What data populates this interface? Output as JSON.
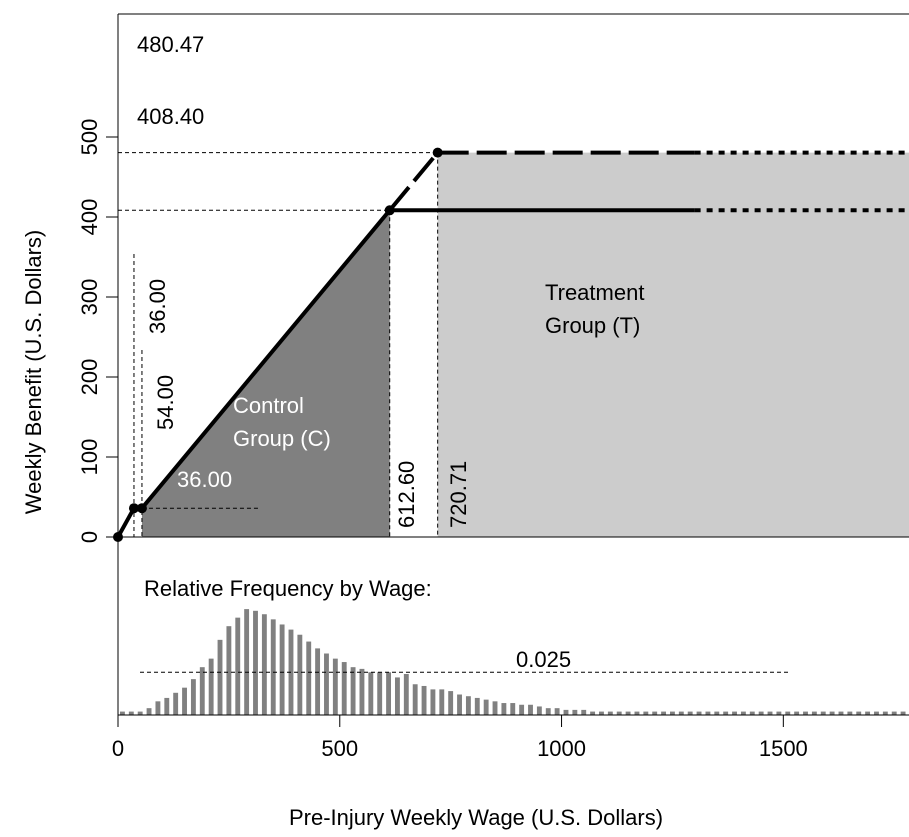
{
  "chart_data": {
    "type": "line",
    "xlabel": "Pre-Injury Weekly Wage (U.S. Dollars)",
    "ylabel": "Weekly Benefit (U.S. Dollars)",
    "xlim": [
      0,
      1800
    ],
    "ylim": [
      0,
      520
    ],
    "x_ticks": [
      0,
      500,
      1000,
      1500
    ],
    "y_ticks": [
      0,
      100,
      200,
      300,
      400,
      500
    ],
    "series": [
      {
        "style": "solid",
        "points": [
          [
            0,
            0
          ],
          [
            36,
            36
          ],
          [
            54,
            36
          ],
          [
            612.6,
            408.4
          ],
          [
            1300,
            408.4
          ]
        ],
        "dotted_extension": [
          [
            1300,
            408.4
          ],
          [
            1800,
            408.4
          ]
        ]
      },
      {
        "style": "dashed",
        "points": [
          [
            612.6,
            408.4
          ],
          [
            720.71,
            480.47
          ],
          [
            1300,
            480.47
          ]
        ],
        "dotted_extension": [
          [
            1300,
            480.47
          ],
          [
            1800,
            480.47
          ]
        ]
      }
    ],
    "marked_points": [
      [
        0,
        0
      ],
      [
        36,
        36
      ],
      [
        54,
        36
      ],
      [
        612.6,
        408.4
      ],
      [
        720.71,
        480.47
      ]
    ],
    "regions": [
      {
        "label_lines": [
          "Control",
          "Group (C)"
        ],
        "x_range": [
          54,
          612.6
        ],
        "fill": "#808080"
      },
      {
        "label_lines": [
          "Treatment",
          "Group (T)"
        ],
        "x_range": [
          720.71,
          1800
        ],
        "fill": "#cccccc"
      }
    ],
    "annotations": {
      "y_max_label": "480.47",
      "y_kink_label": "408.40",
      "x_kink_label": "612.60",
      "x_max_label": "720.71",
      "x_min1_label": "36.00",
      "x_min2_label": "54.00",
      "y_min_label": "36.00"
    },
    "frequency_panel": {
      "title": "Relative Frequency by Wage:",
      "reference_value": 0.025,
      "reference_label": "0.025",
      "bin_width": 20,
      "bin_centers": [
        10,
        30,
        50,
        70,
        90,
        110,
        130,
        150,
        170,
        190,
        210,
        230,
        250,
        270,
        290,
        310,
        330,
        350,
        370,
        390,
        410,
        430,
        450,
        470,
        490,
        510,
        530,
        550,
        570,
        590,
        610,
        630,
        650,
        670,
        690,
        710,
        730,
        750,
        770,
        790,
        810,
        830,
        850,
        870,
        890,
        910,
        930,
        950,
        970,
        990,
        1010,
        1030,
        1050,
        1070,
        1090,
        1110,
        1130,
        1150,
        1170,
        1190,
        1210,
        1230,
        1250,
        1270,
        1290,
        1310,
        1330,
        1350,
        1370,
        1390,
        1410,
        1430,
        1450,
        1470,
        1490,
        1510,
        1530,
        1550,
        1570,
        1590,
        1610,
        1630,
        1650,
        1670,
        1690,
        1710,
        1730,
        1750,
        1770,
        1790
      ],
      "frequencies": [
        0.002,
        0.002,
        0.002,
        0.004,
        0.008,
        0.01,
        0.013,
        0.016,
        0.021,
        0.028,
        0.033,
        0.044,
        0.052,
        0.057,
        0.062,
        0.061,
        0.059,
        0.056,
        0.053,
        0.05,
        0.047,
        0.043,
        0.039,
        0.036,
        0.033,
        0.031,
        0.028,
        0.027,
        0.025,
        0.025,
        0.025,
        0.022,
        0.024,
        0.018,
        0.017,
        0.015,
        0.015,
        0.014,
        0.012,
        0.011,
        0.01,
        0.009,
        0.008,
        0.007,
        0.007,
        0.006,
        0.006,
        0.005,
        0.004,
        0.004,
        0.003,
        0.003,
        0.003,
        0.002,
        0.002,
        0.002,
        0.002,
        0.002,
        0.002,
        0.002,
        0.002,
        0.002,
        0.002,
        0.002,
        0.002,
        0.002,
        0.002,
        0.002,
        0.002,
        0.002,
        0.002,
        0.002,
        0.002,
        0.002,
        0.002,
        0.002,
        0.002,
        0.002,
        0.002,
        0.002,
        0.002,
        0.002,
        0.002,
        0.002,
        0.002,
        0.002,
        0.002,
        0.002,
        0.002,
        0.002
      ]
    }
  }
}
